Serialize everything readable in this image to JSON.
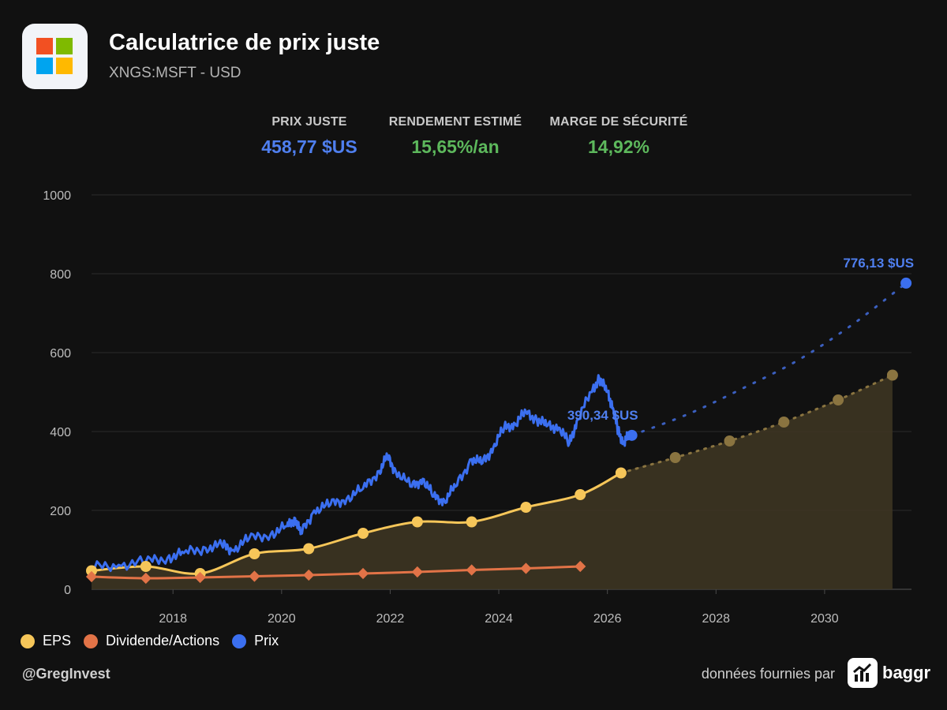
{
  "header": {
    "title": "Calculatrice de prix juste",
    "subtitle": "XNGS:MSFT - USD",
    "logo_colors": [
      "#f25022",
      "#7fba00",
      "#00a4ef",
      "#ffb900"
    ]
  },
  "metrics": [
    {
      "label": "PRIX JUSTE",
      "value": "458,77 $US",
      "color": "#4f7fef"
    },
    {
      "label": "RENDEMENT ESTIMÉ",
      "value": "15,65%/an",
      "color": "#5db85c"
    },
    {
      "label": "MARGE DE SÉCURITÉ",
      "value": "14,92%",
      "color": "#5db85c"
    }
  ],
  "legend": [
    {
      "label": "EPS",
      "color": "#f6c659"
    },
    {
      "label": "Dividende/Actions",
      "color": "#e27347"
    },
    {
      "label": "Prix",
      "color": "#3b6ff0"
    }
  ],
  "footer": {
    "handle": "@GregInvest",
    "credit": "données fournies par",
    "brand": "baggr"
  },
  "chart_data": {
    "type": "line",
    "xlim": [
      2016.5,
      2031.6
    ],
    "ylim": [
      0,
      1000
    ],
    "y_ticks": [
      0,
      200,
      400,
      600,
      800,
      1000
    ],
    "x_ticks": [
      2018,
      2020,
      2022,
      2024,
      2026,
      2028,
      2030
    ],
    "grid": true,
    "legend_position": "bottom-left",
    "series": [
      {
        "name": "EPS",
        "color": "#f6c659",
        "fill": "#3d3522",
        "points": [
          [
            2016.5,
            47
          ],
          [
            2017.5,
            58
          ],
          [
            2018.5,
            40
          ],
          [
            2019.5,
            90
          ],
          [
            2020.5,
            103
          ],
          [
            2021.5,
            142
          ],
          [
            2022.5,
            171
          ],
          [
            2023.5,
            171
          ],
          [
            2024.5,
            208
          ],
          [
            2025.5,
            240
          ],
          [
            2026.25,
            295
          ]
        ],
        "projection": [
          [
            2026.25,
            295
          ],
          [
            2027.25,
            334
          ],
          [
            2028.25,
            376
          ],
          [
            2029.25,
            424
          ],
          [
            2030.25,
            480
          ],
          [
            2031.25,
            543
          ]
        ]
      },
      {
        "name": "Dividende/Actions",
        "color": "#e27347",
        "points": [
          [
            2016.5,
            32
          ],
          [
            2017.5,
            28
          ],
          [
            2018.5,
            30
          ],
          [
            2019.5,
            33
          ],
          [
            2020.5,
            36
          ],
          [
            2021.5,
            40
          ],
          [
            2022.5,
            44
          ],
          [
            2023.5,
            49
          ],
          [
            2024.5,
            53
          ],
          [
            2025.5,
            58
          ]
        ]
      },
      {
        "name": "Prix",
        "color": "#3b6ff0",
        "points": [
          [
            2016.5,
            55
          ],
          [
            2017.0,
            62
          ],
          [
            2017.5,
            70
          ],
          [
            2017.9,
            80
          ],
          [
            2018.2,
            92
          ],
          [
            2018.6,
            105
          ],
          [
            2018.9,
            112
          ],
          [
            2019.1,
            100
          ],
          [
            2019.4,
            128
          ],
          [
            2019.8,
            140
          ],
          [
            2020.1,
            160
          ],
          [
            2020.25,
            180
          ],
          [
            2020.35,
            140
          ],
          [
            2020.6,
            200
          ],
          [
            2020.9,
            215
          ],
          [
            2021.2,
            230
          ],
          [
            2021.5,
            255
          ],
          [
            2021.8,
            300
          ],
          [
            2021.95,
            336
          ],
          [
            2022.1,
            300
          ],
          [
            2022.4,
            260
          ],
          [
            2022.6,
            280
          ],
          [
            2022.8,
            235
          ],
          [
            2023.0,
            225
          ],
          [
            2023.2,
            260
          ],
          [
            2023.5,
            330
          ],
          [
            2023.7,
            320
          ],
          [
            2023.9,
            360
          ],
          [
            2024.1,
            410
          ],
          [
            2024.3,
            420
          ],
          [
            2024.5,
            450
          ],
          [
            2024.7,
            430
          ],
          [
            2024.9,
            415
          ],
          [
            2025.1,
            410
          ],
          [
            2025.3,
            370
          ],
          [
            2025.45,
            430
          ],
          [
            2025.7,
            500
          ],
          [
            2025.85,
            535
          ],
          [
            2026.0,
            500
          ],
          [
            2026.1,
            460
          ],
          [
            2026.2,
            400
          ],
          [
            2026.3,
            370
          ],
          [
            2026.4,
            395
          ]
        ],
        "last_point": [
          2026.45,
          390.34
        ],
        "last_label": "390,34 $US",
        "projection": [
          [
            2026.45,
            390.34
          ],
          [
            2027.5,
            445
          ],
          [
            2028.5,
            510
          ],
          [
            2029.5,
            580
          ],
          [
            2030.5,
            670
          ],
          [
            2031.5,
            776.13
          ]
        ],
        "projection_label": "776,13 $US"
      }
    ]
  }
}
